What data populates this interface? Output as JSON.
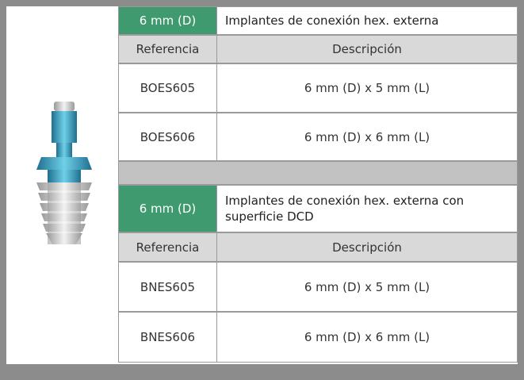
{
  "tables": [
    {
      "header": {
        "size": "6 mm (D)",
        "title": "Implantes de conexión hex. externa"
      },
      "columns": [
        "Referencia",
        "Descripción"
      ],
      "rows": [
        [
          "BOES605",
          "6 mm (D) x 5 mm (L)"
        ],
        [
          "BOES606",
          "6 mm (D) x 6 mm (L)"
        ]
      ]
    },
    {
      "header": {
        "size": "6 mm (D)",
        "title": "Implantes de conexión hex. externa con superficie DCD"
      },
      "columns": [
        "Referencia",
        "Descripción"
      ],
      "rows": [
        [
          "BNES605",
          "6 mm (D) x 5 mm (L)"
        ],
        [
          "BNES606",
          "6 mm (D) x 6 mm (L)"
        ]
      ]
    }
  ]
}
